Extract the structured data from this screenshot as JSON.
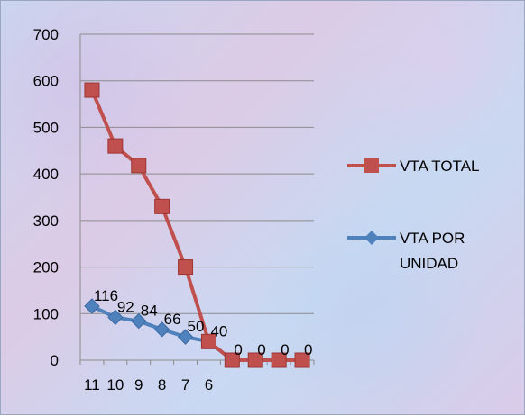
{
  "chart_data": {
    "type": "line",
    "categories": [
      "11",
      "10",
      "9",
      "8",
      "7",
      "6",
      "",
      "",
      "",
      ""
    ],
    "ylim": [
      0,
      700
    ],
    "yticks": [
      0,
      100,
      200,
      300,
      400,
      500,
      600,
      700
    ],
    "grid": true,
    "legend_position": "right",
    "series": [
      {
        "name": "VTA TOTAL",
        "color": "#c0504d",
        "marker": "square",
        "values": [
          580,
          460,
          418,
          330,
          200,
          40,
          0,
          0,
          0,
          0
        ]
      },
      {
        "name": "VTA POR UNIDAD",
        "color": "#4f81bd",
        "marker": "diamond",
        "values": [
          116,
          92,
          84,
          66,
          50,
          40,
          0,
          0,
          0,
          0
        ],
        "data_labels": [
          "116",
          "92",
          "84",
          "66",
          "50",
          "40",
          "0",
          "0",
          "0",
          "0"
        ]
      }
    ]
  }
}
